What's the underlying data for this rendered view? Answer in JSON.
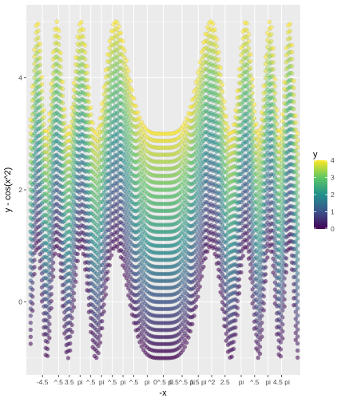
{
  "chart_data": {
    "type": "scatter",
    "title": "",
    "xlabel": "-x",
    "ylabel": "y - cos(x^2)",
    "xlim": [
      -5.1,
      5.1
    ],
    "ylim": [
      -1.3,
      5.3
    ],
    "x_ticks": [
      {
        "value": -4.5,
        "label": "-4.5"
      },
      {
        "value": -3.9,
        "label": "^.5"
      },
      {
        "value": -3.5,
        "label": "3.5"
      },
      {
        "value": -3.1,
        "label": "pi"
      },
      {
        "value": -2.7,
        "label": "^.5"
      },
      {
        "value": -2.3,
        "label": "pi"
      },
      {
        "value": -1.9,
        "label": "^.5"
      },
      {
        "value": -1.5,
        "label": "pi"
      },
      {
        "value": -1.1,
        "label": "^.5"
      },
      {
        "value": -0.6,
        "label": "pi"
      },
      {
        "value": 0.0,
        "label": "0^.5 pi"
      },
      {
        "value": 0.7,
        "label": "0.5^.5 pi"
      },
      {
        "value": 1.3,
        "label": "1.5 pi"
      },
      {
        "value": 1.8,
        "label": "^2"
      },
      {
        "value": 2.3,
        "label": "2.5"
      },
      {
        "value": 2.9,
        "label": "pi"
      },
      {
        "value": 3.4,
        "label": "^.5"
      },
      {
        "value": 3.9,
        "label": "pi"
      },
      {
        "value": 4.4,
        "label": "4.5 pi"
      }
    ],
    "y_ticks": [
      {
        "value": 0,
        "label": "0"
      },
      {
        "value": 2,
        "label": "2"
      },
      {
        "value": 4,
        "label": "4"
      }
    ],
    "series_function": "y - cos(x^2) vs -x, y from 0 to 4 step 0.125, x from -5 to 5 step 0.07",
    "x_range": [
      -5,
      5
    ],
    "x_step": 0.07,
    "y_range": [
      0,
      4
    ],
    "y_step": 0.125,
    "point_alpha": 0.55,
    "color_scale": {
      "name": "viridis",
      "stops": [
        "#440154",
        "#3b528b",
        "#21908c",
        "#5dc863",
        "#fde725"
      ]
    },
    "legend": {
      "title": "y",
      "placement": "right",
      "breaks": [
        "0",
        "1",
        "2",
        "3",
        "4"
      ]
    },
    "grid": true,
    "panel_background": "#ebebeb",
    "grid_color": "#ffffff"
  }
}
